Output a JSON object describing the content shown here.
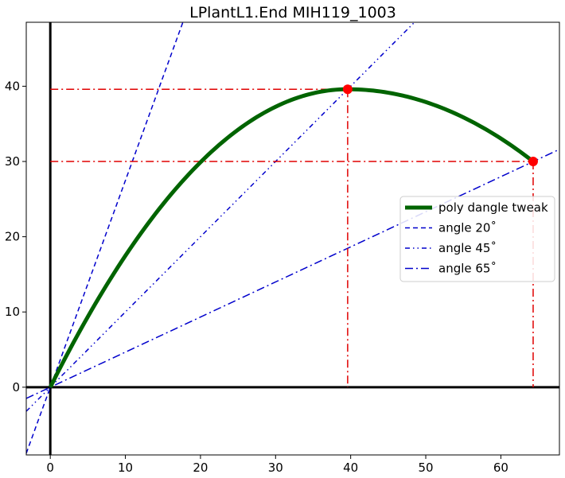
{
  "chart_data": {
    "type": "line",
    "title": "LPlantL1.End MIH119_1003",
    "xlabel": "",
    "ylabel": "",
    "xlim": [
      -3.2,
      67.8
    ],
    "ylim": [
      -9,
      48.5
    ],
    "xticks": [
      0,
      10,
      20,
      30,
      40,
      50,
      60
    ],
    "yticks": [
      0,
      10,
      20,
      30,
      40
    ],
    "grid": false,
    "legend_position": "center-right",
    "series": [
      {
        "name": "poly dangle tweak",
        "style": "solid",
        "color": "#006400",
        "x": [
          0,
          5,
          10,
          15,
          20,
          25,
          30,
          35,
          39.6,
          45,
          50,
          55,
          60,
          64.3
        ],
        "y": [
          0,
          11.6,
          20.6,
          27.5,
          32.7,
          36.3,
          38.5,
          39.4,
          39.6,
          39.0,
          37.5,
          35.1,
          32.4,
          30.0
        ]
      },
      {
        "name": "angle 20$^\\circ$",
        "label": "angle 20˚",
        "style": "dashed",
        "color": "#0000cc",
        "slope": 2.747
      },
      {
        "name": "angle 45$^\\circ$",
        "label": "angle 45˚",
        "style": "dashdotdot",
        "color": "#0000cc",
        "slope": 1.0
      },
      {
        "name": "angle 65$^\\circ$",
        "label": "angle 65˚",
        "style": "dashdot",
        "color": "#0000cc",
        "slope": 0.4663
      }
    ],
    "markers": [
      {
        "x": 39.6,
        "y": 39.6,
        "color": "#ff0000"
      },
      {
        "x": 64.3,
        "y": 30.0,
        "color": "#ff0000"
      }
    ],
    "reference_lines_color": "#e00000"
  }
}
